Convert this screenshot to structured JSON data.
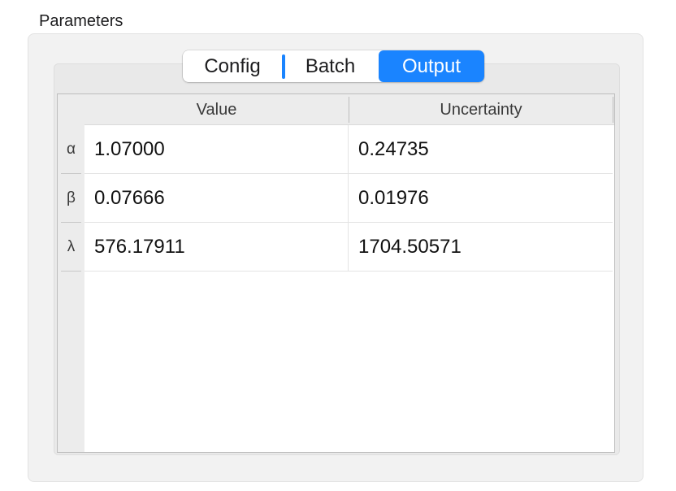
{
  "group": {
    "title": "Parameters"
  },
  "tabs": [
    {
      "label": "Config",
      "selected": false
    },
    {
      "label": "Batch",
      "selected": false
    },
    {
      "label": "Output",
      "selected": true
    }
  ],
  "table": {
    "columns": [
      "Value",
      "Uncertainty"
    ],
    "rows": [
      {
        "label": "α",
        "value": "1.07000",
        "uncertainty": "0.24735"
      },
      {
        "label": "β",
        "value": "0.07666",
        "uncertainty": "0.01976"
      },
      {
        "label": "λ",
        "value": "576.17911",
        "uncertainty": "1704.50571"
      }
    ]
  },
  "colors": {
    "accent": "#1a84ff"
  }
}
